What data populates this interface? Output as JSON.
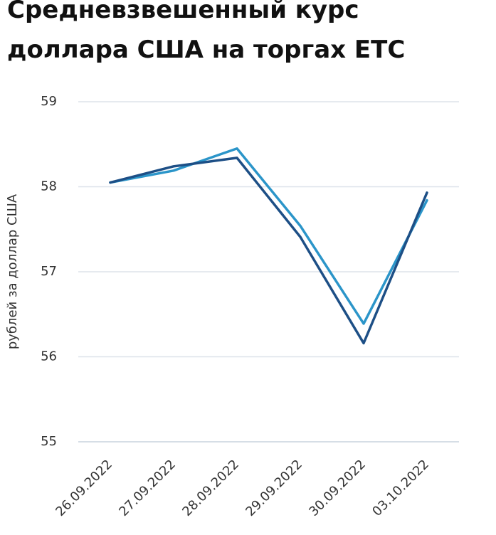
{
  "chart_data": {
    "type": "line",
    "title": "Средневзвешенный курс доллара США на торгах ЕТС",
    "y_label": "рублей за доллар США",
    "categories": [
      "26.09.2022",
      "27.09.2022",
      "28.09.2022",
      "29.09.2022",
      "30.09.2022",
      "03.10.2022"
    ],
    "series": [
      {
        "color": "#2b95c9",
        "values": [
          58.05,
          58.19,
          58.45,
          57.54,
          56.39,
          57.84
        ]
      },
      {
        "color": "#1d4f86",
        "values": [
          58.05,
          58.24,
          58.34,
          57.41,
          56.16,
          57.93
        ]
      }
    ],
    "ylim": [
      55,
      59
    ],
    "yticks": [
      55,
      56,
      57,
      58,
      59
    ],
    "grid": true
  }
}
